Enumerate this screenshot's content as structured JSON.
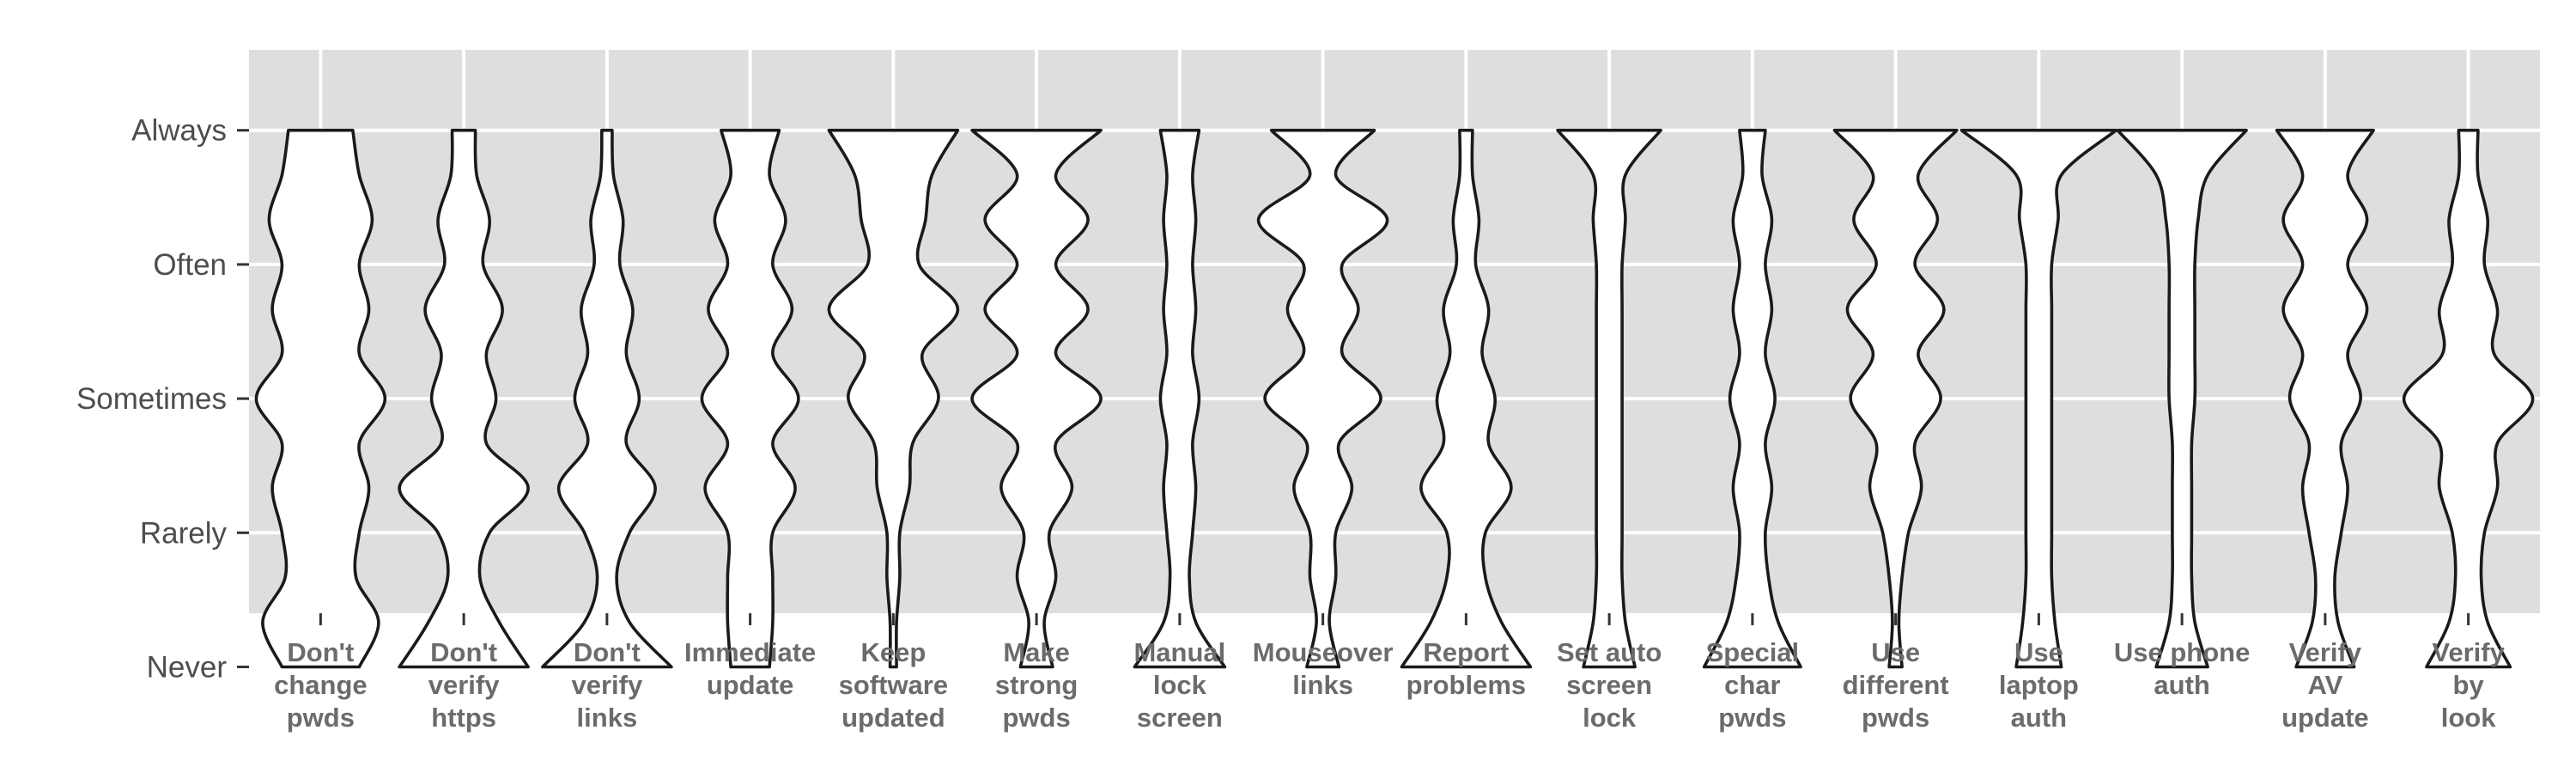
{
  "chart_data": {
    "type": "violin",
    "y_levels": [
      "Never",
      "Rarely",
      "Sometimes",
      "Often",
      "Always"
    ],
    "ylim": [
      0.4,
      4.6
    ],
    "grid": true,
    "panel_background": "#dedede",
    "violin_fill": "#ffffff",
    "violin_stroke": "#1a1a1a",
    "categories": [
      {
        "name": "Don't\nchange\npwds",
        "density": [
          0.6,
          0.9,
          0.55,
          0.6,
          0.75,
          0.6,
          1.0,
          0.6,
          0.75,
          0.6,
          0.8,
          0.6,
          0.5
        ]
      },
      {
        "name": "Don't\nverify\nhttps",
        "density": [
          1.0,
          0.55,
          0.25,
          0.4,
          1.0,
          0.35,
          0.5,
          0.35,
          0.6,
          0.3,
          0.4,
          0.2,
          0.18
        ]
      },
      {
        "name": "Don't\nverify\nlinks",
        "density": [
          1.0,
          0.35,
          0.15,
          0.35,
          0.75,
          0.3,
          0.5,
          0.3,
          0.4,
          0.2,
          0.25,
          0.1,
          0.08
        ]
      },
      {
        "name": "Immediate\nupdate",
        "density": [
          0.3,
          0.35,
          0.35,
          0.35,
          0.7,
          0.35,
          0.75,
          0.35,
          0.65,
          0.35,
          0.55,
          0.3,
          0.45
        ]
      },
      {
        "name": "Keep\nsoftware\nupdated",
        "density": [
          0.05,
          0.05,
          0.1,
          0.1,
          0.25,
          0.3,
          0.7,
          0.45,
          1.0,
          0.4,
          0.5,
          0.6,
          1.0
        ]
      },
      {
        "name": "Make\nstrong\npwds",
        "density": [
          0.25,
          0.12,
          0.3,
          0.2,
          0.55,
          0.3,
          1.0,
          0.3,
          0.8,
          0.3,
          0.8,
          0.3,
          1.0
        ]
      },
      {
        "name": "Manual\nlock\nscreen",
        "density": [
          0.7,
          0.25,
          0.15,
          0.2,
          0.25,
          0.2,
          0.3,
          0.2,
          0.25,
          0.2,
          0.25,
          0.2,
          0.3
        ]
      },
      {
        "name": "Mouseover\nlinks",
        "density": [
          0.25,
          0.1,
          0.2,
          0.2,
          0.45,
          0.25,
          0.9,
          0.3,
          0.55,
          0.3,
          1.0,
          0.2,
          0.8
        ]
      },
      {
        "name": "Report\nproblems",
        "density": [
          1.0,
          0.55,
          0.3,
          0.3,
          0.7,
          0.35,
          0.45,
          0.25,
          0.35,
          0.15,
          0.2,
          0.1,
          0.1
        ]
      },
      {
        "name": "Set auto\nscreen\nlock",
        "density": [
          0.4,
          0.25,
          0.2,
          0.2,
          0.2,
          0.2,
          0.2,
          0.2,
          0.2,
          0.2,
          0.25,
          0.25,
          0.8
        ]
      },
      {
        "name": "Special\nchar\npwds",
        "density": [
          0.75,
          0.4,
          0.25,
          0.2,
          0.3,
          0.2,
          0.35,
          0.2,
          0.3,
          0.2,
          0.3,
          0.15,
          0.2
        ]
      },
      {
        "name": "Use\ndifferent\npwds",
        "density": [
          0.1,
          0.05,
          0.1,
          0.2,
          0.4,
          0.3,
          0.7,
          0.35,
          0.75,
          0.3,
          0.65,
          0.35,
          0.95
        ]
      },
      {
        "name": "Use\nlaptop\nauth",
        "density": [
          0.35,
          0.25,
          0.2,
          0.2,
          0.2,
          0.2,
          0.2,
          0.2,
          0.2,
          0.2,
          0.3,
          0.35,
          1.2
        ]
      },
      {
        "name": "Use phone\nauth",
        "density": [
          0.4,
          0.2,
          0.15,
          0.15,
          0.15,
          0.15,
          0.2,
          0.2,
          0.2,
          0.2,
          0.25,
          0.4,
          1.0
        ]
      },
      {
        "name": "Verify\nAV\nupdate",
        "density": [
          0.45,
          0.2,
          0.15,
          0.25,
          0.35,
          0.25,
          0.55,
          0.35,
          0.65,
          0.35,
          0.65,
          0.35,
          0.75
        ]
      },
      {
        "name": "Verify\nby\nlook",
        "density": [
          0.65,
          0.3,
          0.2,
          0.25,
          0.45,
          0.45,
          1.0,
          0.4,
          0.45,
          0.25,
          0.3,
          0.15,
          0.15
        ]
      }
    ]
  }
}
